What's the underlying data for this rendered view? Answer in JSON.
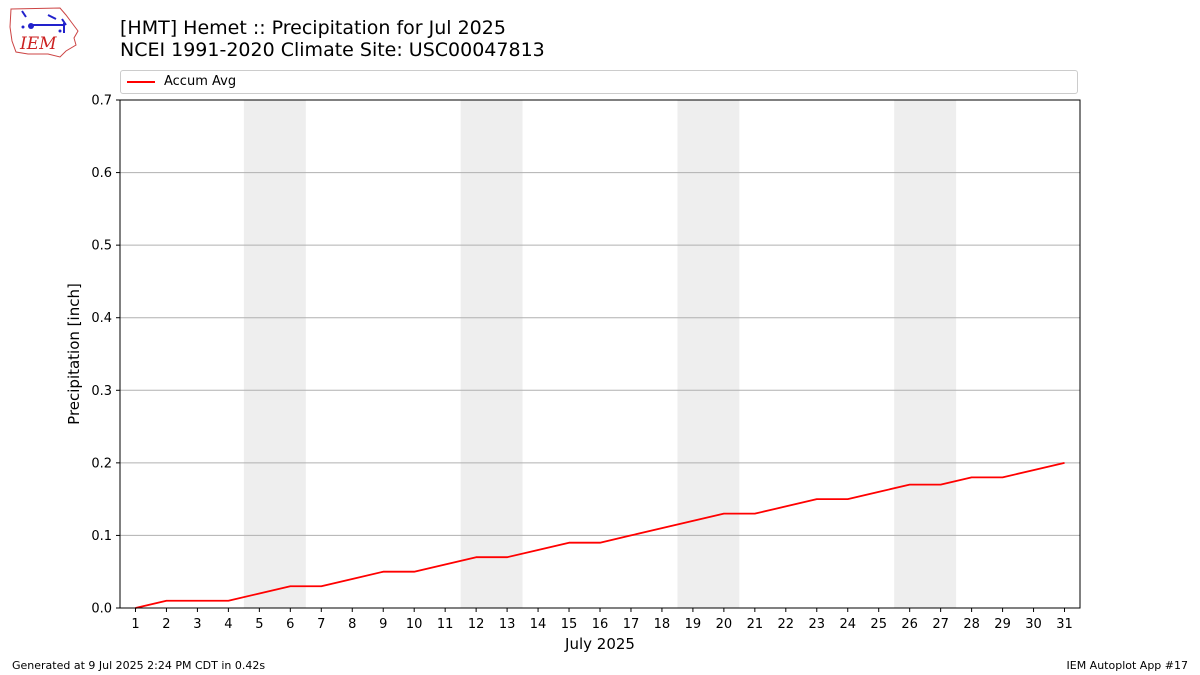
{
  "header": {
    "title_line1": "[HMT] Hemet :: Precipitation for Jul 2025",
    "title_line2": "NCEI 1991-2020 Climate Site: USC00047813",
    "logo_text": "IEM"
  },
  "footer": {
    "generated": "Generated at 9 Jul 2025 2:24 PM CDT in 0.42s",
    "app": "IEM Autoplot App #17"
  },
  "colors": {
    "series": "#ff0000",
    "weekend_shade": "#eeeeee",
    "grid": "#b0b0b0"
  },
  "chart_data": {
    "type": "line",
    "title": "[HMT] Hemet :: Precipitation for Jul 2025",
    "subtitle": "NCEI 1991-2020 Climate Site: USC00047813",
    "xlabel": "July 2025",
    "ylabel": "Precipitation [inch]",
    "xlim": [
      0.5,
      31.5
    ],
    "ylim": [
      0,
      0.7
    ],
    "yticks": [
      "0.0",
      "0.1",
      "0.2",
      "0.3",
      "0.4",
      "0.5",
      "0.6",
      "0.7"
    ],
    "grid": "horizontal",
    "legend_placement": "top",
    "shaded_days": [
      [
        5,
        6
      ],
      [
        12,
        13
      ],
      [
        19,
        20
      ],
      [
        26,
        27
      ]
    ],
    "x": [
      1,
      2,
      3,
      4,
      5,
      6,
      7,
      8,
      9,
      10,
      11,
      12,
      13,
      14,
      15,
      16,
      17,
      18,
      19,
      20,
      21,
      22,
      23,
      24,
      25,
      26,
      27,
      28,
      29,
      30,
      31
    ],
    "series": [
      {
        "name": "Accum Avg",
        "values": [
          0.0,
          0.01,
          0.01,
          0.01,
          0.02,
          0.03,
          0.03,
          0.04,
          0.05,
          0.05,
          0.06,
          0.07,
          0.07,
          0.08,
          0.09,
          0.09,
          0.1,
          0.11,
          0.12,
          0.13,
          0.13,
          0.14,
          0.15,
          0.15,
          0.16,
          0.17,
          0.17,
          0.18,
          0.18,
          0.19,
          0.2
        ]
      }
    ]
  }
}
